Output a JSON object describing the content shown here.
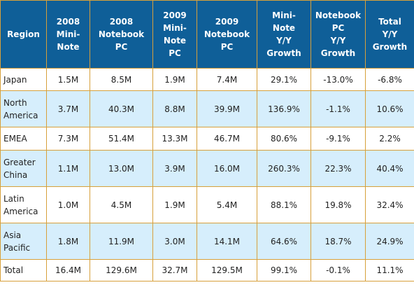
{
  "table": {
    "headers": [
      [
        "Region"
      ],
      [
        "2008",
        "Mini-",
        "Note"
      ],
      [
        "2008",
        "Notebook",
        "PC"
      ],
      [
        "2009",
        "Mini-",
        "Note",
        "PC"
      ],
      [
        "2009",
        "Notebook",
        "PC"
      ],
      [
        "Mini-",
        "Note",
        "Y/Y",
        "Growth"
      ],
      [
        "Notebook",
        "PC",
        "Y/Y",
        "Growth"
      ],
      [
        "Total",
        "Y/Y",
        "Growth"
      ]
    ],
    "rows": [
      [
        "Japan",
        "1.5M",
        "8.5M",
        "1.9M",
        "7.4M",
        "29.1%",
        "-13.0%",
        "-6.8%"
      ],
      [
        "North America",
        "3.7M",
        "40.3M",
        "8.8M",
        "39.9M",
        "136.9%",
        "-1.1%",
        "10.6%"
      ],
      [
        "EMEA",
        "7.3M",
        "51.4M",
        "13.3M",
        "46.7M",
        "80.6%",
        "-9.1%",
        "2.2%"
      ],
      [
        "Greater China",
        "1.1M",
        "13.0M",
        "3.9M",
        "16.0M",
        "260.3%",
        "22.3%",
        "40.4%"
      ],
      [
        "Latin America",
        "1.0M",
        "4.5M",
        "1.9M",
        "5.4M",
        "88.1%",
        "19.8%",
        "32.4%"
      ],
      [
        "Asia Pacific",
        "1.8M",
        "11.9M",
        "3.0M",
        "14.1M",
        "64.6%",
        "18.7%",
        "24.9%"
      ],
      [
        "Total",
        "16.4M",
        "129.6M",
        "32.7M",
        "129.5M",
        "99.1%",
        "-0.1%",
        "11.1%"
      ]
    ]
  }
}
